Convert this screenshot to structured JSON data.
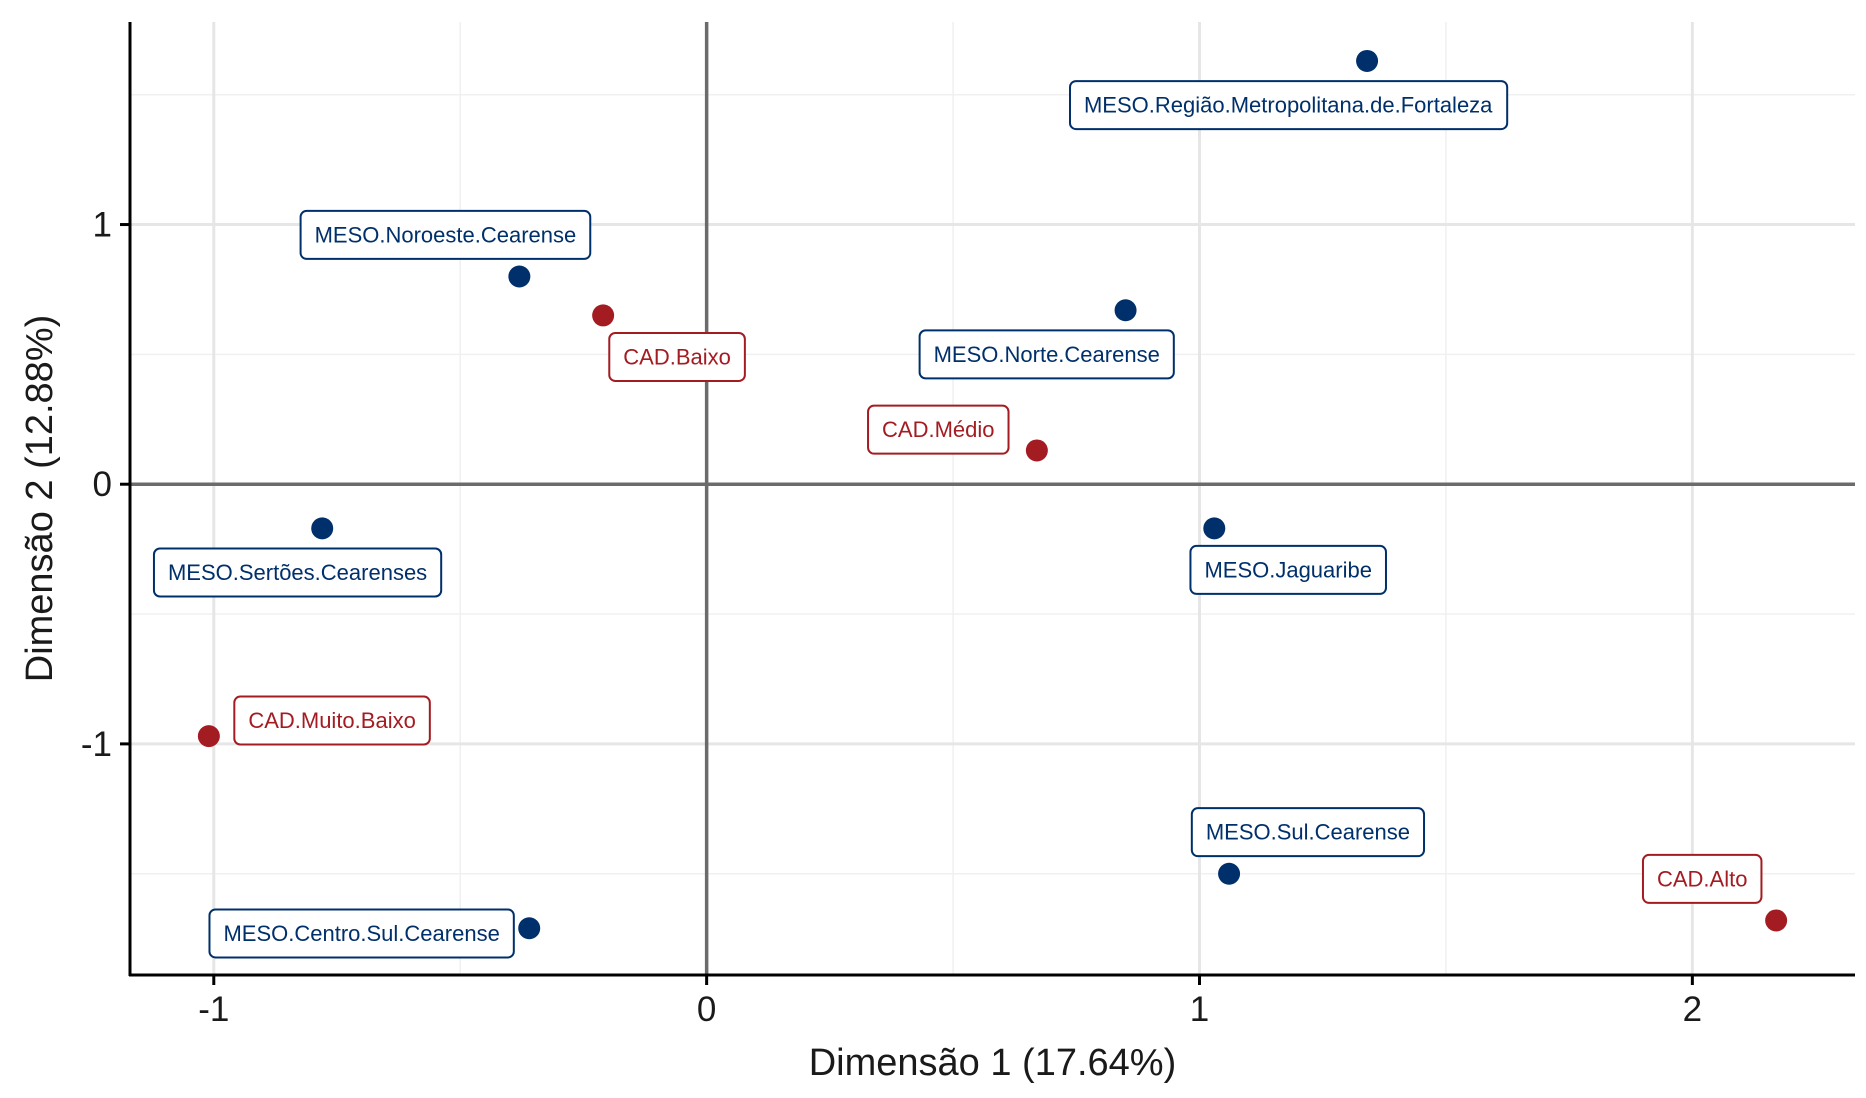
{
  "chart_data": {
    "type": "scatter",
    "title": "",
    "xlabel": "Dimensão 1 (17.64%)",
    "ylabel": "Dimensão 2 (12.88%)",
    "xlim": [
      -1.17,
      2.33
    ],
    "ylim": [
      -1.89,
      1.78
    ],
    "x_ticks": [
      -1,
      0,
      1,
      2
    ],
    "x_tick_labels": [
      "-1",
      "0",
      "1",
      "2"
    ],
    "y_ticks": [
      -1,
      0,
      1
    ],
    "y_tick_labels": [
      "-1",
      "0",
      "1"
    ],
    "grid": true,
    "legend": "none",
    "colors": {
      "MESO": "#00306b",
      "CAD": "#a31c22"
    },
    "series": [
      {
        "group": "MESO",
        "points": [
          {
            "label": "MESO.Região.Metropolitana.de.Fortaleza",
            "x": 1.34,
            "y": 1.63,
            "label_x": 1.18,
            "label_y": 1.46
          },
          {
            "label": "MESO.Noroeste.Cearense",
            "x": -0.38,
            "y": 0.8,
            "label_x": -0.53,
            "label_y": 0.96
          },
          {
            "label": "MESO.Norte.Cearense",
            "x": 0.85,
            "y": 0.67,
            "label_x": 0.69,
            "label_y": 0.5
          },
          {
            "label": "MESO.Sertões.Cearenses",
            "x": -0.78,
            "y": -0.17,
            "label_x": -0.83,
            "label_y": -0.34
          },
          {
            "label": "MESO.Jaguaribe",
            "x": 1.03,
            "y": -0.17,
            "label_x": 1.18,
            "label_y": -0.33
          },
          {
            "label": "MESO.Sul.Cearense",
            "x": 1.06,
            "y": -1.5,
            "label_x": 1.22,
            "label_y": -1.34
          },
          {
            "label": "MESO.Centro.Sul.Cearense",
            "x": -0.36,
            "y": -1.71,
            "label_x": -0.7,
            "label_y": -1.73
          }
        ]
      },
      {
        "group": "CAD",
        "points": [
          {
            "label": "CAD.Baixo",
            "x": -0.21,
            "y": 0.65,
            "label_x": -0.06,
            "label_y": 0.49
          },
          {
            "label": "CAD.Médio",
            "x": 0.67,
            "y": 0.13,
            "label_x": 0.47,
            "label_y": 0.21
          },
          {
            "label": "CAD.Muito.Baixo",
            "x": -1.01,
            "y": -0.97,
            "label_x": -0.76,
            "label_y": -0.91
          },
          {
            "label": "CAD.Alto",
            "x": 2.17,
            "y": -1.68,
            "label_x": 2.02,
            "label_y": -1.52
          }
        ]
      }
    ]
  }
}
